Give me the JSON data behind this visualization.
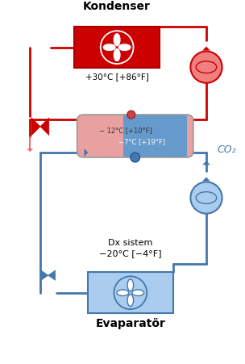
{
  "kondenser_label": "Kondenser",
  "kondenser_temp": "+30°C [+86°F]",
  "cascade_temp1": "− 12°C [+10°F]",
  "cascade_temp2": "−7°C [+19°F]",
  "dx_line1": "Dx sistem",
  "dx_line2": "−20°C [−4°F]",
  "evaporator_label": "Evaparatör",
  "co2_label": "CO₂",
  "red_color": "#CC0000",
  "red_light": "#E87070",
  "blue_color": "#4477AA",
  "blue_light": "#AACCEE",
  "blue_med": "#6699CC",
  "pink_color": "#E8A0A0",
  "bg_color": "#FFFFFF",
  "comp_r": 20
}
